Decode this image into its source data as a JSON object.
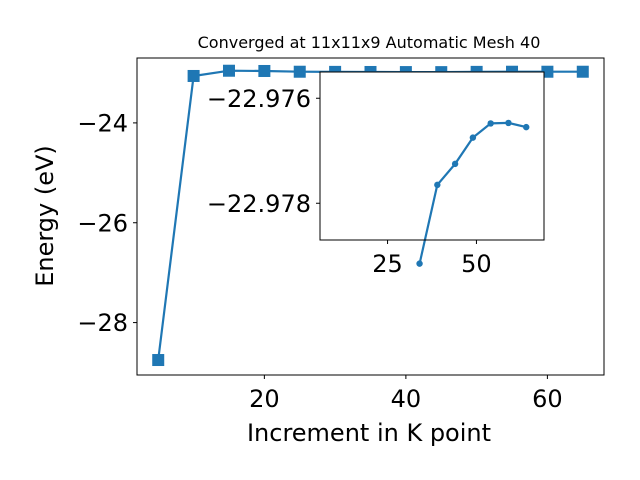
{
  "chart_data": [
    {
      "type": "line",
      "title": "Converged at 11x11x9 Automatic Mesh 40",
      "xlabel": "Increment in K point",
      "ylabel": "Energy (eV)",
      "xlim": [
        2.0,
        68.0
      ],
      "ylim": [
        -29.05,
        -22.7
      ],
      "xticks": [
        20,
        40,
        60
      ],
      "yticks": [
        -28,
        -26,
        -24
      ],
      "xtick_labels": [
        "20",
        "40",
        "60"
      ],
      "ytick_labels": [
        "−28",
        "−26",
        "−24"
      ],
      "grid": false,
      "marker": "square",
      "color": "#1f77b4",
      "x": [
        5,
        10,
        15,
        20,
        25,
        30,
        35,
        40,
        45,
        50,
        55,
        60,
        65
      ],
      "values": [
        -28.75,
        -23.06,
        -22.955,
        -22.96,
        -22.975,
        -22.978,
        -22.98,
        -22.982,
        -22.983,
        -22.978,
        -22.975,
        -22.975,
        -22.975
      ]
    },
    {
      "type": "line",
      "title": "",
      "xlabel": "",
      "ylabel": "",
      "xlim": [
        6.0,
        69.0
      ],
      "ylim": [
        -22.9787,
        -22.9755
      ],
      "xticks": [
        25,
        50
      ],
      "yticks": [
        -22.978,
        -22.976
      ],
      "xtick_labels": [
        "25",
        "50"
      ],
      "ytick_labels": [
        "−22.978",
        "−22.976"
      ],
      "grid": false,
      "marker": "circle",
      "color": "#1f77b4",
      "x": [
        34,
        39,
        44,
        49,
        54,
        59,
        64
      ],
      "values": [
        -22.97915,
        -22.97765,
        -22.97725,
        -22.97675,
        -22.97648,
        -22.97647,
        -22.97655
      ]
    }
  ]
}
